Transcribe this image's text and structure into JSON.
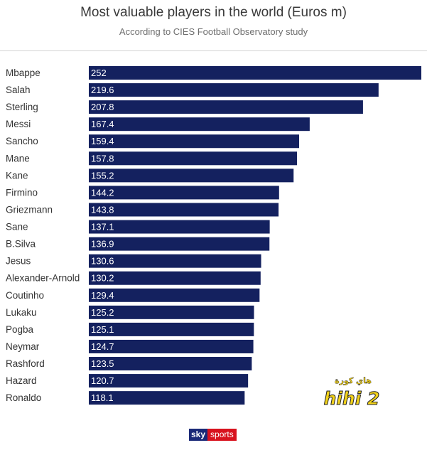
{
  "title": "Most valuable players in the world (Euros m)",
  "subtitle": "According to CIES Football Observatory study",
  "logo": {
    "brand": "sky",
    "suffix": "sports"
  },
  "watermark": {
    "arabic": "هاي كورة",
    "latin": "hihi 2"
  },
  "colors": {
    "bar": "#14215f",
    "bar_label": "#ffffff",
    "category_label": "#333333",
    "title": "#3a3a3a",
    "subtitle": "#6e6e6e",
    "logo_sky": "#1b2a78",
    "logo_sports": "#d8121e",
    "watermark": "#f2d21a"
  },
  "chart_data": {
    "type": "bar",
    "orientation": "horizontal",
    "title": "Most valuable players in the world (Euros m)",
    "subtitle": "According to CIES Football Observatory study",
    "xlabel": "",
    "ylabel": "",
    "xlim": [
      0,
      252
    ],
    "grid": false,
    "legend": "none",
    "categories": [
      "Mbappe",
      "Salah",
      "Sterling",
      "Messi",
      "Sancho",
      "Mane",
      "Kane",
      "Firmino",
      "Griezmann",
      "Sane",
      "B.Silva",
      "Jesus",
      "Alexander-Arnold",
      "Coutinho",
      "Lukaku",
      "Pogba",
      "Neymar",
      "Rashford",
      "Hazard",
      "Ronaldo"
    ],
    "values": [
      252,
      219.6,
      207.8,
      167.4,
      159.4,
      157.8,
      155.2,
      144.2,
      143.8,
      137.1,
      136.9,
      130.6,
      130.2,
      129.4,
      125.2,
      125.1,
      124.7,
      123.5,
      120.7,
      118.1
    ],
    "value_labels": [
      "252",
      "219.6",
      "207.8",
      "167.4",
      "159.4",
      "157.8",
      "155.2",
      "144.2",
      "143.8",
      "137.1",
      "136.9",
      "130.6",
      "130.2",
      "129.4",
      "125.2",
      "125.1",
      "124.7",
      "123.5",
      "120.7",
      "118.1"
    ]
  }
}
